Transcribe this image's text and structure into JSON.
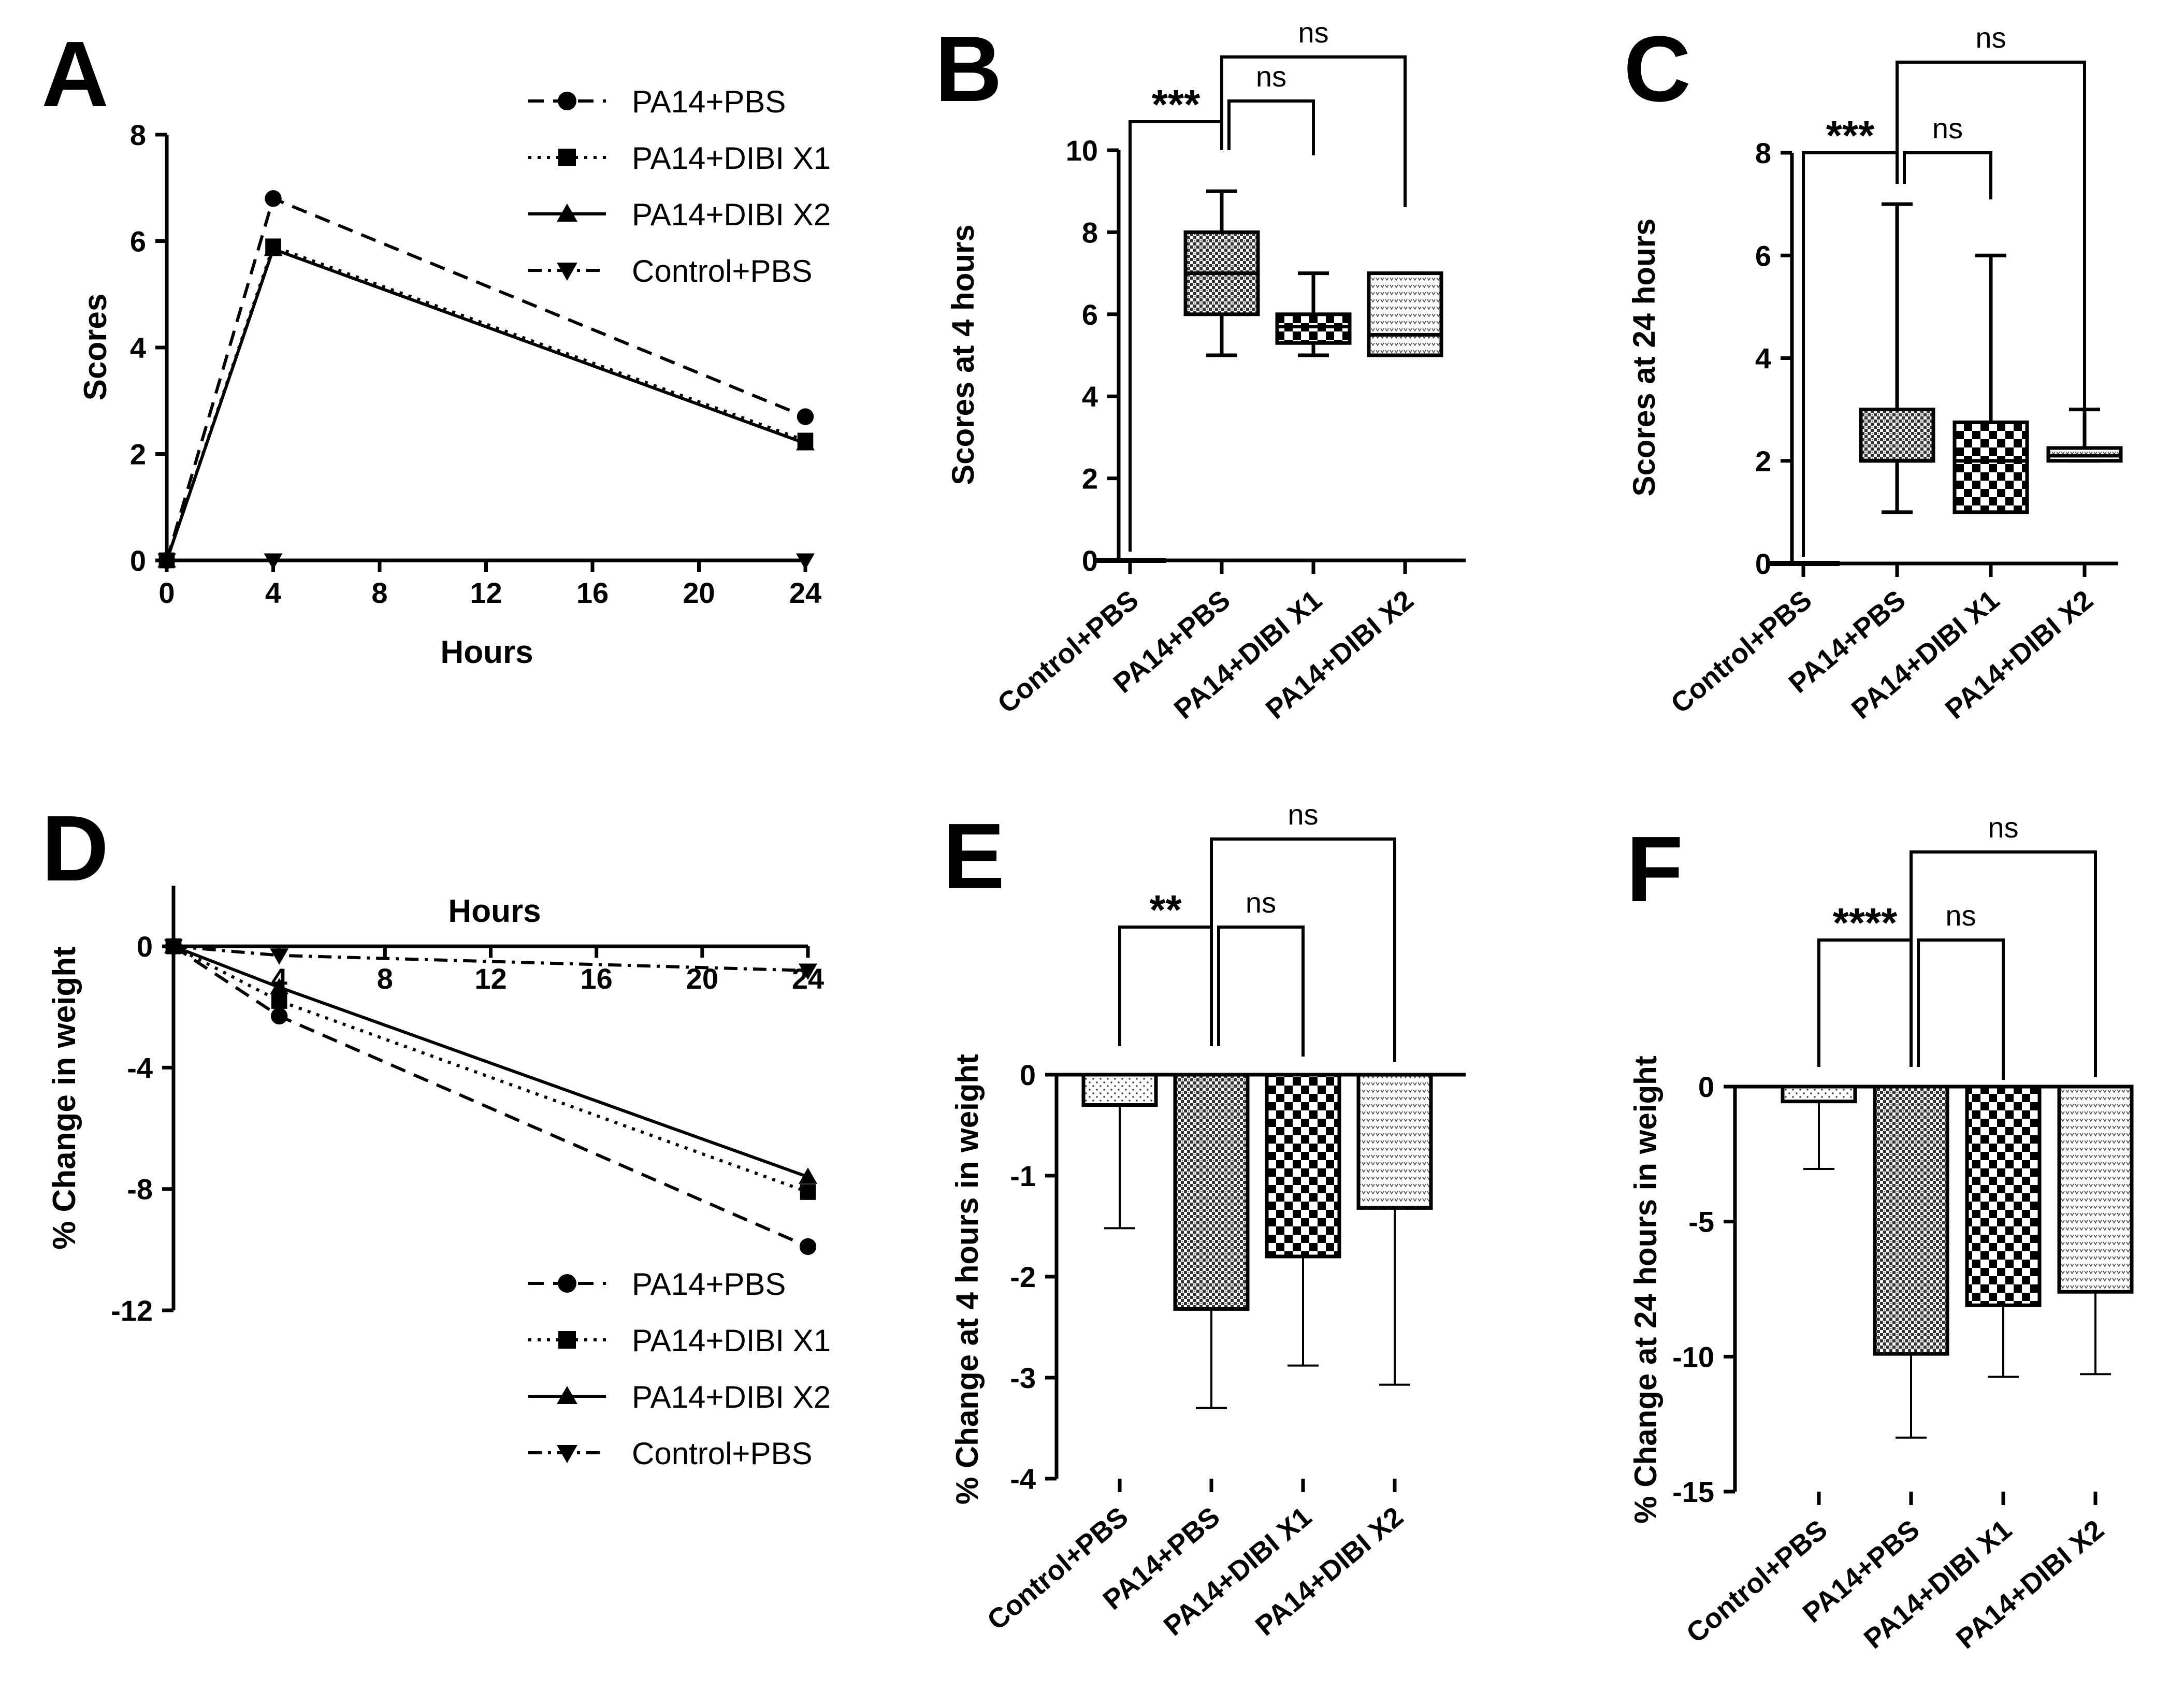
{
  "groups": [
    "Control+PBS",
    "PA14+PBS",
    "PA14+DIBI X1",
    "PA14+DIBI X2"
  ],
  "legend_series": [
    "PA14+PBS",
    "PA14+DIBI X1",
    "PA14+DIBI X2",
    "Control+PBS"
  ],
  "chart_data": [
    {
      "panel": "A",
      "type": "line",
      "xlabel": "Hours",
      "ylabel": "Scores",
      "xlim": [
        0,
        24
      ],
      "ylim": [
        0,
        8
      ],
      "xticks": [
        "0",
        "4",
        "8",
        "12",
        "16",
        "20",
        "24"
      ],
      "yticks": [
        "0",
        "2",
        "4",
        "6",
        "8"
      ],
      "x": [
        0,
        4,
        24
      ],
      "series": [
        {
          "name": "PA14+PBS",
          "marker": "circle",
          "dash": "dashed",
          "values": [
            0,
            6.8,
            2.7
          ]
        },
        {
          "name": "PA14+DIBI X1",
          "marker": "square",
          "dash": "dotted",
          "values": [
            0,
            5.9,
            2.25
          ]
        },
        {
          "name": "PA14+DIBI X2",
          "marker": "triangle-up",
          "dash": "solid",
          "values": [
            0,
            5.85,
            2.2
          ]
        },
        {
          "name": "Control+PBS",
          "marker": "triangle-down",
          "dash": "dashdot",
          "values": [
            0,
            0,
            0
          ]
        }
      ]
    },
    {
      "panel": "B",
      "type": "box",
      "ylabel": "Scores at 4 hours",
      "ylim": [
        0,
        10
      ],
      "yticks": [
        "0",
        "2",
        "4",
        "6",
        "8",
        "10"
      ],
      "categories": [
        "Control+PBS",
        "PA14+PBS",
        "PA14+DIBI X1",
        "PA14+DIBI X2"
      ],
      "boxes": [
        {
          "min": 0,
          "q1": 0,
          "median": 0,
          "q3": 0,
          "max": 0
        },
        {
          "min": 5,
          "q1": 6,
          "median": 7,
          "q3": 8,
          "max": 9
        },
        {
          "min": 5,
          "q1": 5.3,
          "median": 5.7,
          "q3": 6,
          "max": 7
        },
        {
          "min": 5,
          "q1": 5,
          "median": 5.5,
          "q3": 7,
          "max": 7
        }
      ],
      "significance": [
        {
          "from": 0,
          "to": 1,
          "label": "***"
        },
        {
          "from": 1,
          "to": 2,
          "label": "ns"
        },
        {
          "from": 1,
          "to": 3,
          "label": "ns"
        }
      ]
    },
    {
      "panel": "C",
      "type": "box",
      "ylabel": "Scores at 24 hours",
      "ylim": [
        0,
        8
      ],
      "yticks": [
        "0",
        "2",
        "4",
        "6",
        "8"
      ],
      "categories": [
        "Control+PBS",
        "PA14+PBS",
        "PA14+DIBI X1",
        "PA14+DIBI X2"
      ],
      "boxes": [
        {
          "min": 0,
          "q1": 0,
          "median": 0,
          "q3": 0,
          "max": 0
        },
        {
          "min": 1,
          "q1": 2,
          "median": 2,
          "q3": 3,
          "max": 7
        },
        {
          "min": 1,
          "q1": 1,
          "median": 2,
          "q3": 2.75,
          "max": 6
        },
        {
          "min": 2,
          "q1": 2,
          "median": 2.1,
          "q3": 2.25,
          "max": 3
        }
      ],
      "significance": [
        {
          "from": 0,
          "to": 1,
          "label": "***"
        },
        {
          "from": 1,
          "to": 2,
          "label": "ns"
        },
        {
          "from": 1,
          "to": 3,
          "label": "ns"
        }
      ]
    },
    {
      "panel": "D",
      "type": "line",
      "xlabel": "Hours",
      "ylabel": "% Change in weight",
      "xlim": [
        0,
        24
      ],
      "ylim": [
        -12,
        2
      ],
      "xticks": [
        "4",
        "8",
        "12",
        "16",
        "20",
        "24"
      ],
      "yticks": [
        "0",
        "-4",
        "-8",
        "-12"
      ],
      "x": [
        0,
        4,
        24
      ],
      "series": [
        {
          "name": "PA14+PBS",
          "marker": "circle",
          "dash": "dashed",
          "values": [
            0,
            -2.3,
            -9.9
          ]
        },
        {
          "name": "PA14+DIBI X1",
          "marker": "square",
          "dash": "dotted",
          "values": [
            0,
            -1.8,
            -8.1
          ]
        },
        {
          "name": "PA14+DIBI X2",
          "marker": "triangle-up",
          "dash": "solid",
          "values": [
            0,
            -1.35,
            -7.6
          ]
        },
        {
          "name": "Control+PBS",
          "marker": "triangle-down",
          "dash": "dashdot",
          "values": [
            0,
            -0.3,
            -0.8
          ]
        }
      ]
    },
    {
      "panel": "E",
      "type": "bar",
      "ylabel": "% Change at 4 hours in weight",
      "ylim": [
        -4,
        0
      ],
      "yticks": [
        "0",
        "-1",
        "-2",
        "-3",
        "-4"
      ],
      "categories": [
        "Control+PBS",
        "PA14+PBS",
        "PA14+DIBI X1",
        "PA14+DIBI X2"
      ],
      "values": [
        -0.3,
        -2.32,
        -1.8,
        -1.32
      ],
      "errors": [
        1.22,
        0.98,
        1.08,
        1.75
      ],
      "significance": [
        {
          "from": 0,
          "to": 1,
          "label": "**"
        },
        {
          "from": 1,
          "to": 2,
          "label": "ns"
        },
        {
          "from": 1,
          "to": 3,
          "label": "ns"
        }
      ]
    },
    {
      "panel": "F",
      "type": "bar",
      "ylabel": "% Change at 24 hours in weight",
      "ylim": [
        -15,
        0
      ],
      "yticks": [
        "0",
        "-5",
        "-10",
        "-15"
      ],
      "categories": [
        "Control+PBS",
        "PA14+PBS",
        "PA14+DIBI X1",
        "PA14+DIBI X2"
      ],
      "values": [
        -0.55,
        -9.9,
        -8.1,
        -7.6
      ],
      "errors": [
        2.5,
        3.1,
        2.65,
        3.05
      ],
      "significance": [
        {
          "from": 0,
          "to": 1,
          "label": "****"
        },
        {
          "from": 1,
          "to": 2,
          "label": "ns"
        },
        {
          "from": 1,
          "to": 3,
          "label": "ns"
        }
      ]
    }
  ]
}
